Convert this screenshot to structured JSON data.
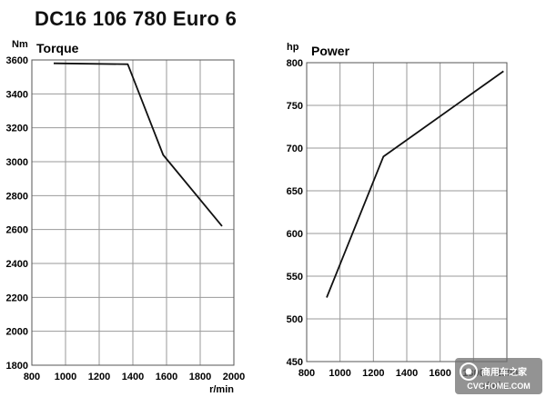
{
  "title": "DC16 106 780 Euro 6",
  "chart_data": [
    {
      "type": "line",
      "title": "Torque",
      "ylabel": "Nm",
      "xlabel": "r/min",
      "xlim": [
        800,
        2000
      ],
      "ylim": [
        1800,
        3600
      ],
      "xticks": [
        800,
        1000,
        1200,
        1400,
        1600,
        1800,
        2000
      ],
      "yticks": [
        1800,
        2000,
        2200,
        2400,
        2600,
        2800,
        3000,
        3200,
        3400,
        3600
      ],
      "grid": true,
      "series": [
        {
          "x": [
            930,
            1370,
            1580,
            1930
          ],
          "y": [
            3580,
            3575,
            3040,
            2620
          ]
        }
      ]
    },
    {
      "type": "line",
      "title": "Power",
      "ylabel": "hp",
      "xlabel": "r/min",
      "xlim": [
        800,
        2000
      ],
      "ylim": [
        450,
        800
      ],
      "xticks": [
        800,
        1000,
        1200,
        1400,
        1600,
        1800,
        2000
      ],
      "yticks": [
        450,
        500,
        550,
        600,
        650,
        700,
        750,
        800
      ],
      "grid": true,
      "series": [
        {
          "x": [
            920,
            1260,
            1980
          ],
          "y": [
            525,
            690,
            790
          ]
        }
      ]
    }
  ],
  "watermark": {
    "text": "商用车之家",
    "sub": "CVCHOME.COM"
  }
}
